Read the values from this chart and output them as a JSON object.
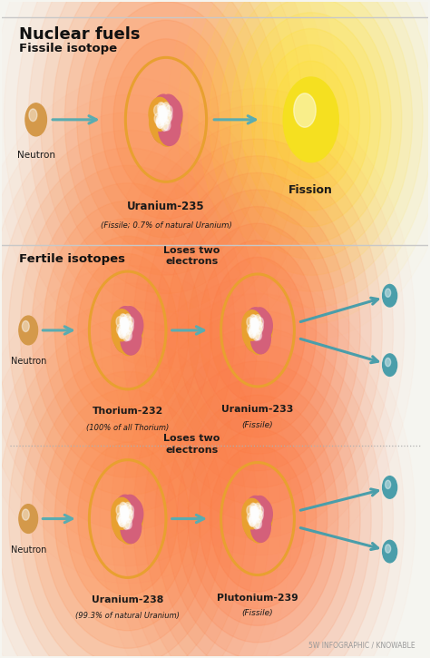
{
  "bg_color": "#f5f5f0",
  "title": "Nuclear fuels",
  "section1_label": "Fissile isotope",
  "section2_label": "Fertile isotopes",
  "section_line_color": "#c8c8c8",
  "dot_line_color": "#b0b0b0",
  "arrow_color": "#5aacb0",
  "neutron_color": "#d4994a",
  "nucleus_outer_color": "#e8a030",
  "nucleus_inner_color": "#d4607a",
  "fission_color": "#f5e020",
  "fission_glow": "#ffe060",
  "text_dark": "#1a1a1a",
  "text_bold": "#111111",
  "electron_color": "#4a9eaa",
  "footer": "5W INFOGRAPHIC / KNOWABLE"
}
